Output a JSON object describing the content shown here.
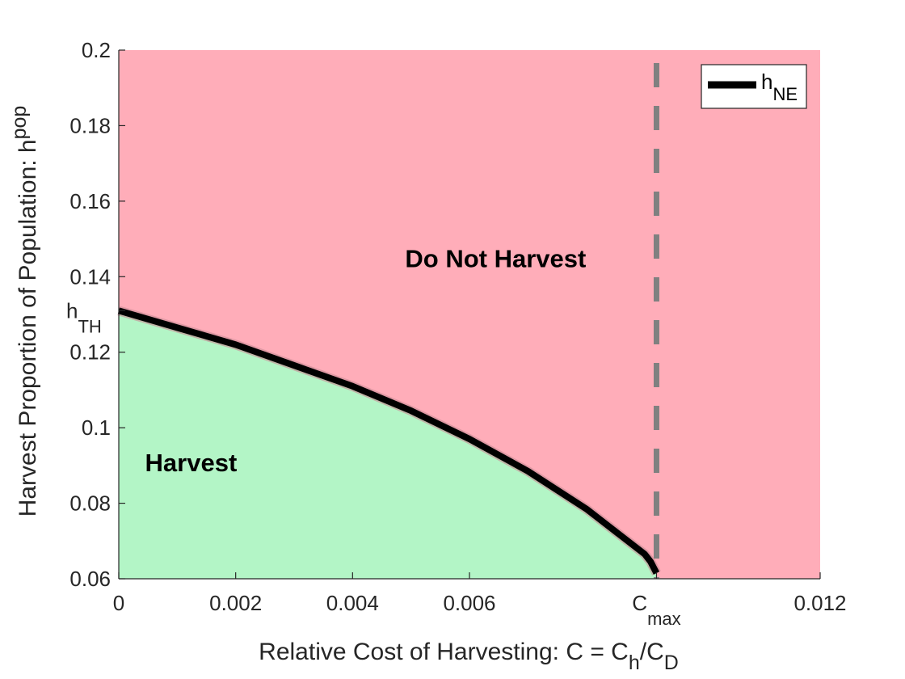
{
  "chart_data": {
    "type": "area",
    "xlabel": {
      "main": "Relative Cost of Harvesting: C = C",
      "sub1": "h",
      "mid": "/C",
      "sub2": "D"
    },
    "ylabel": {
      "main": "Harvest Proportion of Population: h",
      "sub": "pop"
    },
    "xlim": [
      0,
      0.012
    ],
    "ylim": [
      0.06,
      0.2
    ],
    "x_ticks": [
      {
        "value": 0,
        "label": "0"
      },
      {
        "value": 0.002,
        "label": "0.002"
      },
      {
        "value": 0.004,
        "label": "0.004"
      },
      {
        "value": 0.006,
        "label": "0.006"
      },
      {
        "value": 0.0092,
        "label": "C",
        "sub": "max"
      },
      {
        "value": 0.012,
        "label": "0.012"
      }
    ],
    "y_ticks": [
      {
        "value": 0.06,
        "label": "0.06"
      },
      {
        "value": 0.08,
        "label": "0.08"
      },
      {
        "value": 0.1,
        "label": "0.1"
      },
      {
        "value": 0.12,
        "label": "0.12"
      },
      {
        "value": 0.131,
        "label": "h",
        "sub": "TH"
      },
      {
        "value": 0.14,
        "label": "0.14"
      },
      {
        "value": 0.16,
        "label": "0.16"
      },
      {
        "value": 0.18,
        "label": "0.18"
      },
      {
        "value": 0.2,
        "label": "0.2"
      }
    ],
    "series": [
      {
        "name": "h_NE",
        "x": [
          0,
          0.001,
          0.002,
          0.003,
          0.004,
          0.005,
          0.006,
          0.007,
          0.008,
          0.0085,
          0.009,
          0.0091,
          0.0092
        ],
        "y": [
          0.131,
          0.1265,
          0.122,
          0.1165,
          0.111,
          0.1045,
          0.097,
          0.0885,
          0.0785,
          0.0725,
          0.0665,
          0.0645,
          0.0615
        ]
      }
    ],
    "c_max": 0.0092,
    "legend": {
      "label": "h",
      "sub": "NE",
      "position": "top-right"
    },
    "regions": {
      "harvest": {
        "label": "Harvest",
        "color": "#b3f5c6",
        "label_at": [
          0.00045,
          0.0885
        ]
      },
      "do_not_harvest": {
        "label": "Do Not Harvest",
        "color": "#ffadb9",
        "label_at": [
          0.0049,
          0.1425
        ]
      }
    },
    "colors": {
      "curve": "#000000",
      "cmax_line": "#808080",
      "axis": "#262626"
    }
  }
}
